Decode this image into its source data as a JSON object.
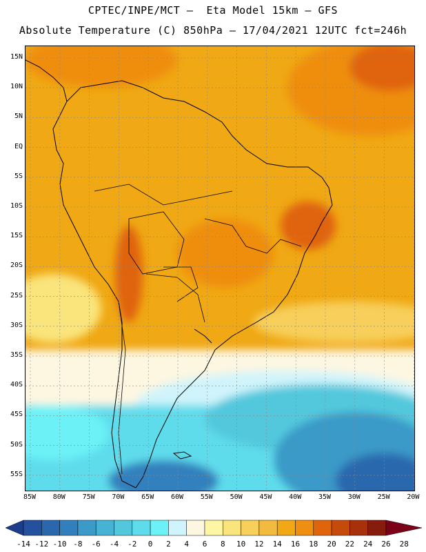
{
  "title_line1": "CPTEC/INPE/MCT –  Eta Model 15km – GFS",
  "title_line2": "Absolute Temperature (C) 850hPa – 17/04/2021 12UTC fct=246h",
  "lat_labels": [
    "15N",
    "10N",
    "5N",
    "EQ",
    "5S",
    "10S",
    "15S",
    "20S",
    "25S",
    "30S",
    "35S",
    "40S",
    "45S",
    "50S",
    "55S"
  ],
  "lon_labels": [
    "85W",
    "80W",
    "75W",
    "70W",
    "65W",
    "60W",
    "55W",
    "50W",
    "45W",
    "40W",
    "35W",
    "30W",
    "25W",
    "20W"
  ],
  "legend": {
    "tick_labels": [
      "-14",
      "-12",
      "-10",
      "-8",
      "-6",
      "-4",
      "-2",
      "0",
      "2",
      "4",
      "6",
      "8",
      "10",
      "12",
      "14",
      "16",
      "18",
      "20",
      "22",
      "24",
      "26",
      "28"
    ],
    "colors": [
      "#1c3c8c",
      "#24519e",
      "#2b67ad",
      "#3180bd",
      "#3b9ac8",
      "#46b2d4",
      "#53c8dd",
      "#5fdcec",
      "#6cf2f6",
      "#d0f4fb",
      "#fdf7e1",
      "#fdf6a4",
      "#fae47c",
      "#f7cf5a",
      "#f2bb40",
      "#f0a814",
      "#ef8e10",
      "#e0640c",
      "#c64a0a",
      "#a8300a",
      "#871c0c",
      "#7b0018"
    ]
  },
  "colors": {
    "coast": "#000000",
    "grid": "#888888"
  }
}
